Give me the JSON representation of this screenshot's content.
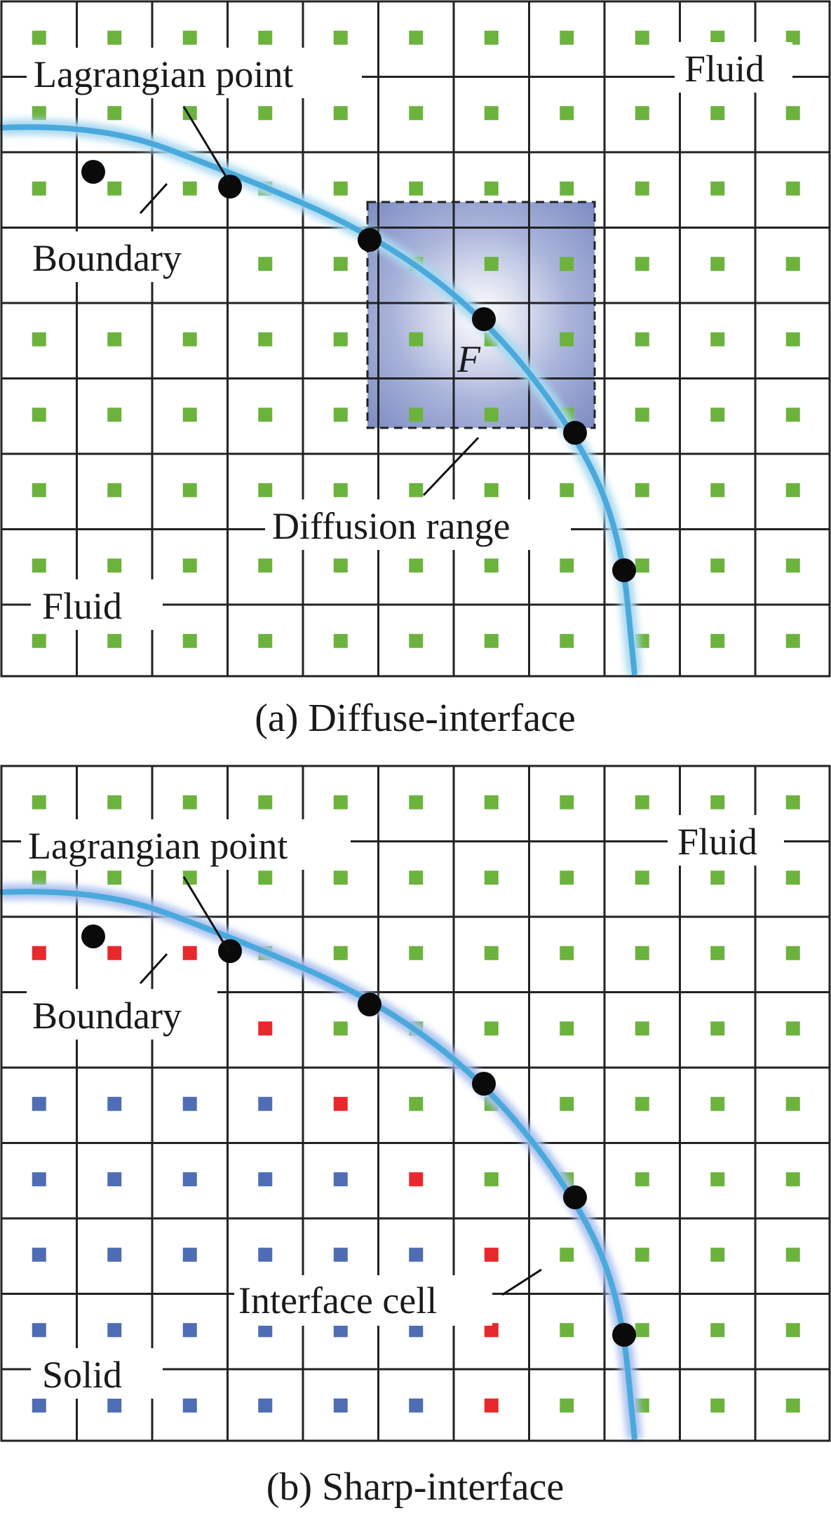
{
  "panel_a": {
    "caption": "(a) Diffuse-interface",
    "labels": {
      "lagrangian_point": "Lagrangian point",
      "boundary": "Boundary",
      "fluid_top": "Fluid",
      "fluid_bottom": "Fluid",
      "diffusion_range": "Diffusion range",
      "force": "F"
    }
  },
  "panel_b": {
    "caption": "(b) Sharp-interface",
    "labels": {
      "lagrangian_point": "Lagrangian point",
      "boundary": "Boundary",
      "fluid": "Fluid",
      "interface_cell": "Interface cell",
      "solid": "Solid"
    }
  },
  "colors": {
    "fluid_node": "#6cb33e",
    "interface_node": "#e8282a",
    "solid_node": "#4e6db5",
    "boundary": "#4aa9dc",
    "grid": "#222222",
    "lagrangian_point": "#0a0a0a",
    "diffusion_fill": "#8593c4"
  }
}
